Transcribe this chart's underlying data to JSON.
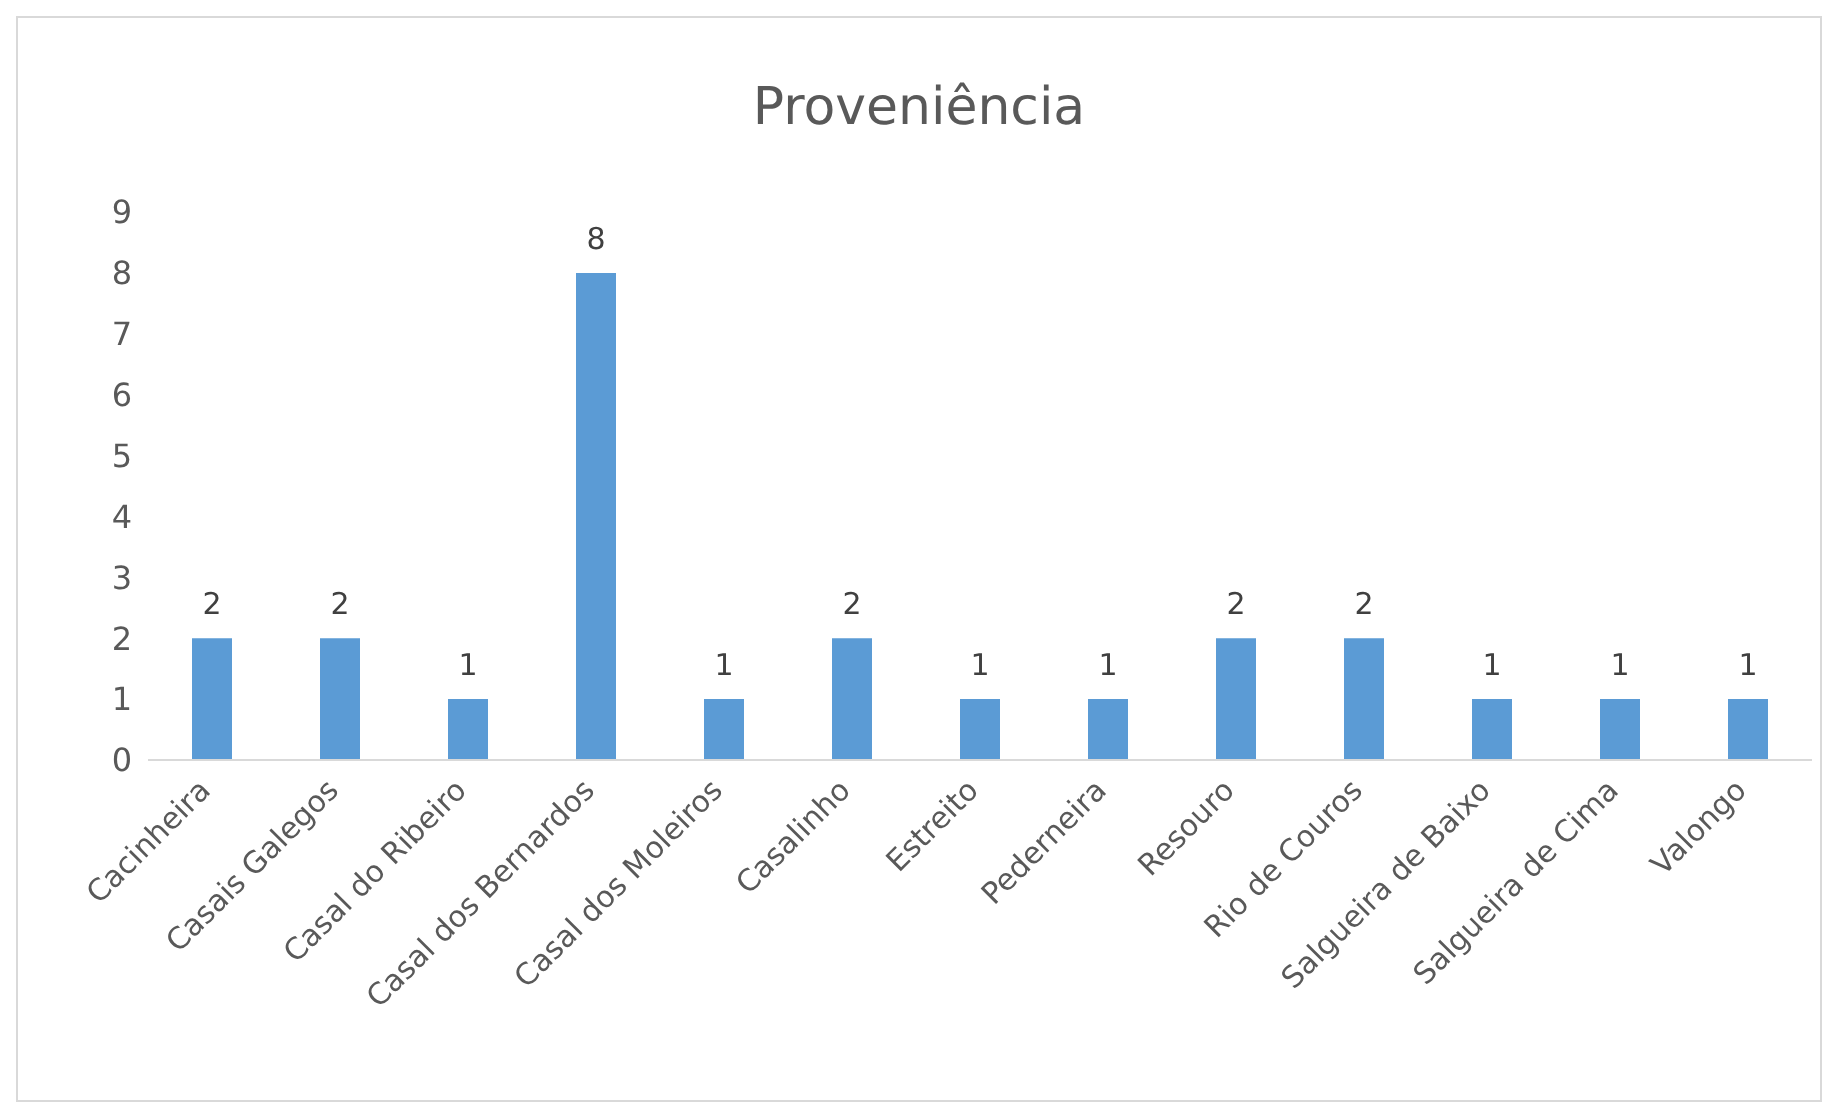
{
  "chart_data": {
    "type": "bar",
    "title": "Proveniência",
    "categories": [
      "Cacinheira",
      "Casais Galegos",
      "Casal do Ribeiro",
      "Casal dos Bernardos",
      "Casal dos Moleiros",
      "Casalinho",
      "Estreito",
      "Pederneira",
      "Resouro",
      "Rio de Couros",
      "Salgueira de Baixo",
      "Salgueira de Cima",
      "Valongo"
    ],
    "values": [
      2,
      2,
      1,
      8,
      1,
      2,
      1,
      1,
      2,
      2,
      1,
      1,
      1
    ],
    "color": "#5b9bd5",
    "ylim": [
      0,
      9
    ],
    "yticks": [
      0,
      1,
      2,
      3,
      4,
      5,
      6,
      7,
      8,
      9
    ],
    "grid": false,
    "data_labels": true
  }
}
